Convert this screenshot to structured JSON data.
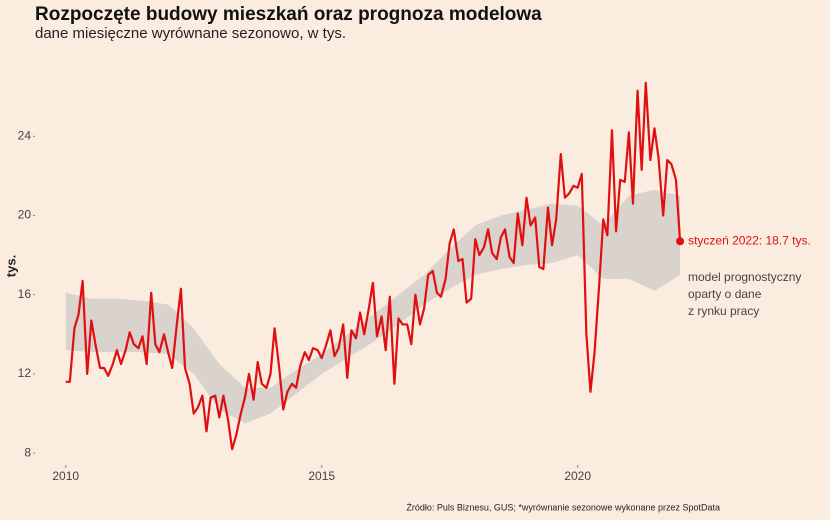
{
  "chart_data": {
    "type": "line",
    "title": "Rozpoczęte budowy mieszkań oraz prognoza modelowa",
    "subtitle": "dane miesięczne wyrównane sezonowo, w tys.",
    "ylabel": "tys.",
    "source": "Źródło: Puls Biznesu, GUS; *wyrównanie sezonowe wykonane przez SpotData",
    "highlight_label": "styczeń 2022: 18.7 tys.",
    "band_label": [
      "model prognostyczny",
      "oparty o dane",
      "z rynku pracy"
    ],
    "xlim": [
      2009.4,
      2022.78
    ],
    "xticks": [
      2010,
      2015,
      2020
    ],
    "ylim": [
      7.4,
      27.5
    ],
    "yticks": [
      8,
      12,
      16,
      20,
      24
    ],
    "grid": false,
    "x": [
      2010.0,
      2010.08,
      2010.17,
      2010.25,
      2010.33,
      2010.42,
      2010.5,
      2010.58,
      2010.67,
      2010.75,
      2010.83,
      2010.92,
      2011.0,
      2011.08,
      2011.17,
      2011.25,
      2011.33,
      2011.42,
      2011.5,
      2011.58,
      2011.67,
      2011.75,
      2011.83,
      2011.92,
      2012.0,
      2012.08,
      2012.17,
      2012.25,
      2012.33,
      2012.42,
      2012.5,
      2012.58,
      2012.67,
      2012.75,
      2012.83,
      2012.92,
      2013.0,
      2013.08,
      2013.17,
      2013.25,
      2013.33,
      2013.42,
      2013.5,
      2013.58,
      2013.67,
      2013.75,
      2013.83,
      2013.92,
      2014.0,
      2014.08,
      2014.17,
      2014.25,
      2014.33,
      2014.42,
      2014.5,
      2014.58,
      2014.67,
      2014.75,
      2014.83,
      2014.92,
      2015.0,
      2015.08,
      2015.17,
      2015.25,
      2015.33,
      2015.42,
      2015.5,
      2015.58,
      2015.67,
      2015.75,
      2015.83,
      2015.92,
      2016.0,
      2016.08,
      2016.17,
      2016.25,
      2016.33,
      2016.42,
      2016.5,
      2016.58,
      2016.67,
      2016.75,
      2016.83,
      2016.92,
      2017.0,
      2017.08,
      2017.17,
      2017.25,
      2017.33,
      2017.42,
      2017.5,
      2017.58,
      2017.67,
      2017.75,
      2017.83,
      2017.92,
      2018.0,
      2018.08,
      2018.17,
      2018.25,
      2018.33,
      2018.42,
      2018.5,
      2018.58,
      2018.67,
      2018.75,
      2018.83,
      2018.92,
      2019.0,
      2019.08,
      2019.17,
      2019.25,
      2019.33,
      2019.42,
      2019.5,
      2019.58,
      2019.67,
      2019.75,
      2019.83,
      2019.92,
      2020.0,
      2020.08,
      2020.17,
      2020.25,
      2020.33,
      2020.42,
      2020.5,
      2020.58,
      2020.67,
      2020.75,
      2020.83,
      2020.92,
      2021.0,
      2021.08,
      2021.17,
      2021.25,
      2021.33,
      2021.42,
      2021.5,
      2021.58,
      2021.67,
      2021.75,
      2021.83,
      2021.92,
      2022.0
    ],
    "series": [
      {
        "name": "rozpoczęte budowy",
        "color": "#e01010",
        "values": [
          11.6,
          11.6,
          14.3,
          15.0,
          16.7,
          12.0,
          14.7,
          13.5,
          12.3,
          12.3,
          11.9,
          12.5,
          13.2,
          12.5,
          13.2,
          14.1,
          13.5,
          13.3,
          13.9,
          12.5,
          16.1,
          13.5,
          13.1,
          14.0,
          13.1,
          12.3,
          14.5,
          16.3,
          12.3,
          11.5,
          10.0,
          10.3,
          10.9,
          9.1,
          10.8,
          10.9,
          9.8,
          10.9,
          9.7,
          8.2,
          8.9,
          10.0,
          10.8,
          12.0,
          10.7,
          12.6,
          11.5,
          11.3,
          12.0,
          14.3,
          12.3,
          10.2,
          11.1,
          11.5,
          11.3,
          12.4,
          13.1,
          12.7,
          13.3,
          13.2,
          12.8,
          13.4,
          14.2,
          12.9,
          13.3,
          14.5,
          11.8,
          14.2,
          13.8,
          15.1,
          14.0,
          15.3,
          16.6,
          13.9,
          14.9,
          13.2,
          15.9,
          11.5,
          14.8,
          14.5,
          14.5,
          13.5,
          16.0,
          14.5,
          15.3,
          17.0,
          17.2,
          16.1,
          15.9,
          16.8,
          18.6,
          19.3,
          17.7,
          17.8,
          15.6,
          15.8,
          18.8,
          18.0,
          18.4,
          19.3,
          18.1,
          17.8,
          18.9,
          19.3,
          17.9,
          17.6,
          20.1,
          18.5,
          20.9,
          19.5,
          19.9,
          17.4,
          17.3,
          20.4,
          18.5,
          19.8,
          23.1,
          20.9,
          21.1,
          21.5,
          21.4,
          22.1,
          14.0,
          11.1,
          13.1,
          16.5,
          19.8,
          19.0,
          24.3,
          19.2,
          21.8,
          21.7,
          24.2,
          20.6,
          26.3,
          22.3,
          26.7,
          22.8,
          24.4,
          22.9,
          20.0,
          22.8,
          22.6,
          21.8,
          18.7
        ]
      }
    ],
    "band": {
      "name": "model prognostyczny",
      "color": "#d9d2cd",
      "x": [
        2010,
        2010.5,
        2011,
        2011.5,
        2012,
        2012.5,
        2013,
        2013.5,
        2014,
        2014.5,
        2015,
        2015.5,
        2016,
        2016.5,
        2017,
        2017.5,
        2018,
        2018.5,
        2019,
        2019.5,
        2020,
        2020.5,
        2021,
        2021.5,
        2022
      ],
      "upper": [
        16.1,
        15.8,
        15.8,
        15.7,
        15.5,
        14.3,
        12.5,
        11.3,
        11.3,
        12.2,
        13.0,
        14.0,
        15.0,
        16.0,
        17.0,
        18.3,
        19.5,
        20.0,
        20.3,
        20.6,
        20.5,
        19.5,
        21.0,
        21.3,
        21.0
      ],
      "lower": [
        13.2,
        13.1,
        13.1,
        13.1,
        13.0,
        12.0,
        10.2,
        9.5,
        10.0,
        11.0,
        12.0,
        12.8,
        13.6,
        14.5,
        15.5,
        16.3,
        17.0,
        17.3,
        17.5,
        17.6,
        18.0,
        16.8,
        16.8,
        16.2,
        17.0
      ]
    }
  }
}
